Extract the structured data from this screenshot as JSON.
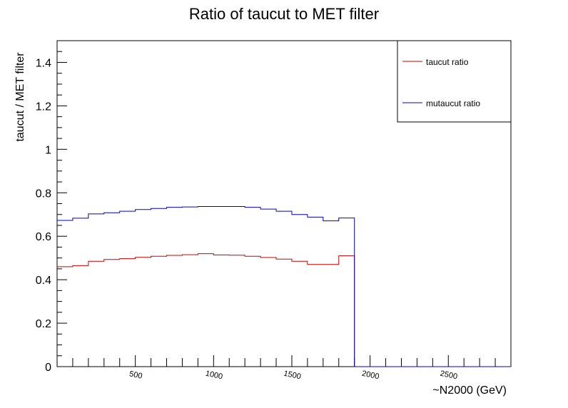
{
  "chart_data": {
    "type": "line",
    "title": "Ratio of taucut to MET filter",
    "xlabel": "~N2000 (GeV)",
    "ylabel": "taucut / MET filter",
    "xlim": [
      0,
      2900
    ],
    "ylim": [
      0,
      1.5
    ],
    "x_tick_labels": [
      "500",
      "1000",
      "1500",
      "2000",
      "2500"
    ],
    "x_tick_values": [
      500,
      1000,
      1500,
      2000,
      2500
    ],
    "y_tick_labels": [
      "0",
      "0.2",
      "0.4",
      "0.6",
      "0.8",
      "1",
      "1.2",
      "1.4"
    ],
    "y_tick_values": [
      0,
      0.2,
      0.4,
      0.6,
      0.8,
      1.0,
      1.2,
      1.4
    ],
    "grid": false,
    "legend_position": "top-right",
    "bin_edges": [
      0,
      100,
      200,
      300,
      400,
      500,
      600,
      700,
      800,
      900,
      1000,
      1100,
      1200,
      1300,
      1400,
      1500,
      1600,
      1700,
      1800,
      1900,
      2000,
      2100,
      2200,
      2300,
      2400,
      2500,
      2600,
      2700,
      2800,
      2900
    ],
    "series": [
      {
        "name": "taucut ratio",
        "color": "#cc0000",
        "values": [
          0.46,
          0.465,
          0.485,
          0.493,
          0.497,
          0.503,
          0.508,
          0.512,
          0.515,
          0.52,
          0.514,
          0.513,
          0.508,
          0.502,
          0.495,
          0.485,
          0.47,
          0.47,
          0.51,
          0,
          0,
          0,
          0,
          0,
          0,
          0,
          0,
          0,
          0
        ]
      },
      {
        "name": "mutaucut ratio",
        "color": "#0000cc",
        "values": [
          0.673,
          0.683,
          0.703,
          0.708,
          0.715,
          0.723,
          0.728,
          0.733,
          0.735,
          0.737,
          0.737,
          0.737,
          0.733,
          0.725,
          0.715,
          0.7,
          0.688,
          0.671,
          0.684,
          0,
          0,
          0,
          0,
          0,
          0,
          0,
          0,
          0,
          0
        ]
      }
    ]
  }
}
